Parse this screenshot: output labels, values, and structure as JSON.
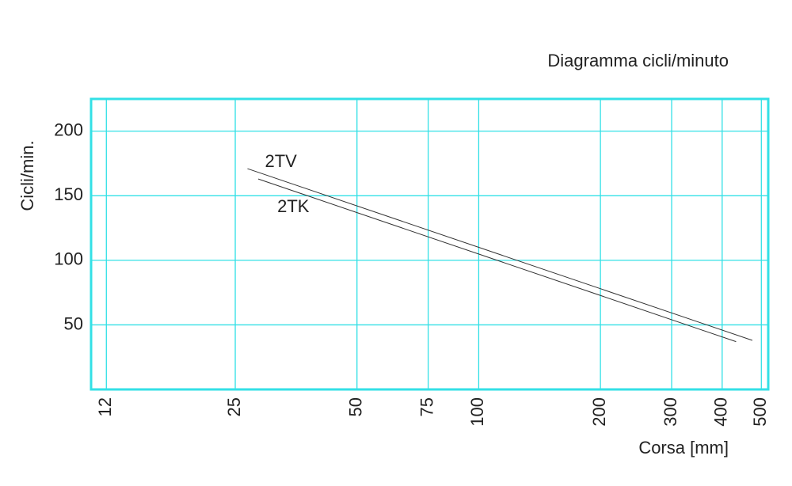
{
  "chart_data": {
    "type": "line",
    "title": "Diagramma cicli/minuto",
    "x_label": "Corsa [mm]",
    "y_label": "Cicli/min.",
    "log_x": true,
    "grid": true,
    "grid_color": "#33e0e6",
    "xlim": [
      11,
      520
    ],
    "xticks": [
      12,
      25,
      50,
      75,
      100,
      200,
      300,
      400,
      500
    ],
    "ylim": [
      0,
      225
    ],
    "yticks": [
      50,
      100,
      150,
      200
    ],
    "series": [
      {
        "name": "2TV",
        "color": "#333333",
        "x": [
          26.8,
          475
        ],
        "values": [
          171,
          38
        ]
      },
      {
        "name": "2TK",
        "color": "#333333",
        "x": [
          28.5,
          433
        ],
        "values": [
          163,
          37
        ]
      }
    ]
  }
}
